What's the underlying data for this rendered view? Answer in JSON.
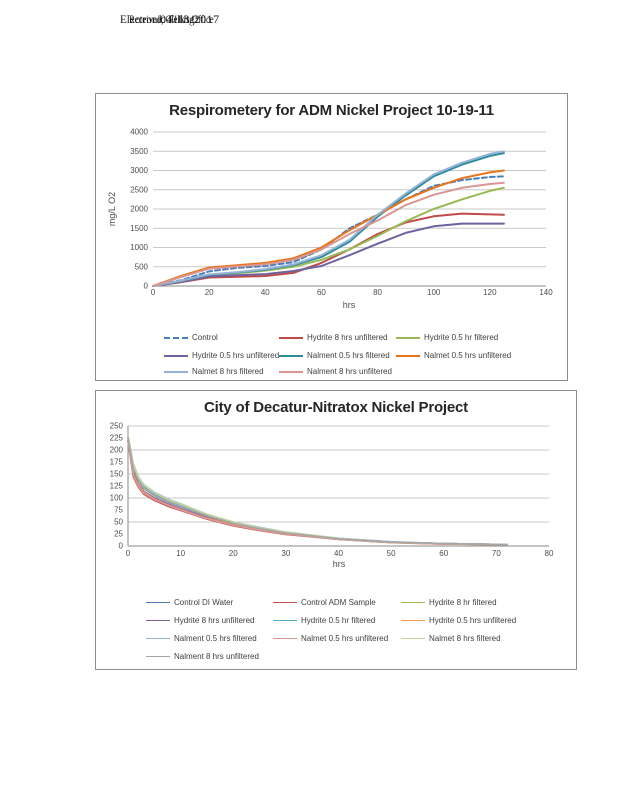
{
  "header": {
    "overlap_line": {
      "part1": "Electronic Filing:",
      "part2": "Received, Clerk's Office",
      "part3": "04/13/2017"
    }
  },
  "colors": {
    "gridline": "#c9c9c9",
    "axis": "#8a8a8a",
    "chart_border": "#8c8c8c",
    "tick_text": "#4d4d4d",
    "title_text": "#262626"
  },
  "chart_data": [
    {
      "type": "line",
      "title": "Respirometery for ADM Nickel Project 10-19-11",
      "xlabel": "hrs",
      "ylabel": "mg/L O2",
      "xlim": [
        0,
        140
      ],
      "ylim": [
        0,
        4000
      ],
      "xticks": [
        0,
        20,
        40,
        60,
        80,
        100,
        120,
        140
      ],
      "yticks": [
        0,
        500,
        1000,
        1500,
        2000,
        2500,
        3000,
        3500,
        4000
      ],
      "gridlines_y": [
        500,
        1000,
        1500,
        2000,
        2500,
        3000,
        3500,
        4000
      ],
      "grid": "horizontal",
      "legend_position": "bottom",
      "legend_columns": 3,
      "x": [
        0,
        10,
        20,
        30,
        40,
        50,
        60,
        70,
        80,
        90,
        100,
        110,
        120,
        125
      ],
      "series": [
        {
          "name": "Control",
          "color": "#4a7ebb",
          "dash": true,
          "values": [
            0,
            150,
            380,
            470,
            520,
            620,
            950,
            1500,
            1850,
            2250,
            2600,
            2750,
            2830,
            2850
          ]
        },
        {
          "name": "Hydrite 8 hrs unfiltered",
          "color": "#be4b48",
          "dash": false,
          "values": [
            0,
            100,
            220,
            240,
            260,
            340,
            600,
            950,
            1350,
            1650,
            1810,
            1880,
            1860,
            1850
          ]
        },
        {
          "name": "Hydrite 0.5 hr filtered",
          "color": "#98b954",
          "dash": false,
          "values": [
            0,
            120,
            280,
            330,
            400,
            500,
            680,
            950,
            1300,
            1680,
            2000,
            2250,
            2470,
            2550
          ]
        },
        {
          "name": "Hydrite 0.5 hrs unfiltered",
          "color": "#6f62a0",
          "dash": false,
          "values": [
            0,
            110,
            250,
            280,
            310,
            390,
            520,
            800,
            1100,
            1380,
            1550,
            1620,
            1620,
            1620
          ]
        },
        {
          "name": "Nalment 0.5 hrs filtered",
          "color": "#2e8b9a",
          "dash": false,
          "values": [
            0,
            130,
            290,
            350,
            420,
            540,
            750,
            1150,
            1800,
            2350,
            2850,
            3150,
            3380,
            3450
          ]
        },
        {
          "name": "Nalmet 0.5 hrs unfiltered",
          "color": "#e8751a",
          "dash": false,
          "values": [
            0,
            260,
            480,
            540,
            600,
            720,
            1000,
            1450,
            1850,
            2250,
            2550,
            2800,
            2950,
            3000
          ]
        },
        {
          "name": "Nalmet 8 hrs filtered",
          "color": "#95b3d7",
          "dash": false,
          "values": [
            0,
            140,
            300,
            360,
            440,
            560,
            800,
            1200,
            1850,
            2400,
            2900,
            3200,
            3430,
            3500
          ]
        },
        {
          "name": "Nalment 8 hrs unfiltered",
          "color": "#d99694",
          "dash": false,
          "values": [
            0,
            230,
            450,
            510,
            560,
            680,
            950,
            1350,
            1700,
            2100,
            2370,
            2550,
            2650,
            2680
          ]
        }
      ]
    },
    {
      "type": "line",
      "title": "City of Decatur-Nitratox Nickel Project",
      "xlabel": "hrs",
      "ylabel": "",
      "xlim": [
        0,
        80
      ],
      "ylim": [
        0,
        250
      ],
      "xticks": [
        0,
        10,
        20,
        30,
        40,
        50,
        60,
        70,
        80
      ],
      "yticks": [
        0,
        25,
        50,
        75,
        100,
        125,
        150,
        175,
        200,
        225,
        250
      ],
      "gridlines_y": [
        50,
        100,
        150,
        200,
        250
      ],
      "grid": "horizontal",
      "legend_position": "bottom",
      "legend_columns": 3,
      "x": [
        0,
        1,
        2,
        3,
        5,
        8,
        10,
        15,
        20,
        25,
        30,
        40,
        50,
        60,
        72
      ],
      "series": [
        {
          "name": "Control DI Water",
          "color": "#4f81bd",
          "dash": false,
          "values": [
            225,
            160,
            135,
            120,
            105,
            90,
            82,
            62,
            47,
            36,
            27,
            15,
            8,
            5,
            3
          ]
        },
        {
          "name": "Control ADM Sample",
          "color": "#c0504d",
          "dash": false,
          "values": [
            218,
            144,
            122,
            108,
            95,
            81,
            74,
            56,
            42,
            32,
            24,
            14,
            7,
            4,
            3
          ]
        },
        {
          "name": "Hydrite 8 hr filtered",
          "color": "#9bbb59",
          "dash": false,
          "values": [
            228,
            165,
            139,
            124,
            108,
            93,
            84,
            64,
            48,
            37,
            28,
            15,
            8,
            5,
            3
          ]
        },
        {
          "name": "Hydrite 8 hrs unfiltered",
          "color": "#8064a2",
          "dash": false,
          "values": [
            220,
            152,
            128,
            114,
            100,
            86,
            78,
            59,
            45,
            34,
            26,
            14,
            8,
            5,
            3
          ]
        },
        {
          "name": "Hydrite 0.5 hr filtered",
          "color": "#4bacc6",
          "dash": false,
          "values": [
            229,
            168,
            142,
            126,
            110,
            95,
            86,
            65,
            49,
            38,
            28,
            16,
            8,
            5,
            3
          ]
        },
        {
          "name": "Hydrite 0.5 hrs unfiltered",
          "color": "#f79646",
          "dash": false,
          "values": [
            219,
            149,
            126,
            112,
            98,
            84,
            76,
            58,
            44,
            33,
            25,
            14,
            7,
            4,
            3
          ]
        },
        {
          "name": "Nalment 0.5 hrs filtered",
          "color": "#95b3d7",
          "dash": false,
          "values": [
            230,
            171,
            144,
            128,
            112,
            96,
            88,
            66,
            50,
            39,
            29,
            16,
            9,
            5,
            3
          ]
        },
        {
          "name": "Nalmet 0.5 hrs unfiltered",
          "color": "#d99694",
          "dash": false,
          "values": [
            217,
            147,
            124,
            110,
            97,
            83,
            75,
            57,
            43,
            33,
            25,
            14,
            7,
            4,
            3
          ]
        },
        {
          "name": "Nalmet 8 hrs filtered",
          "color": "#c3d69b",
          "dash": false,
          "values": [
            230,
            170,
            143,
            127,
            111,
            95,
            87,
            66,
            50,
            38,
            29,
            16,
            8,
            5,
            3
          ]
        },
        {
          "name": "Nalment 8 hrs unfiltered",
          "color": "#a6a6a6",
          "dash": false,
          "values": [
            225,
            161,
            136,
            121,
            106,
            91,
            83,
            63,
            47,
            36,
            27,
            15,
            8,
            5,
            3
          ]
        }
      ]
    }
  ]
}
